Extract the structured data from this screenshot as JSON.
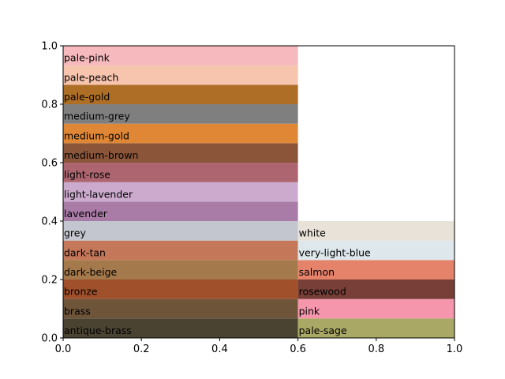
{
  "chart_data": {
    "type": "bar",
    "title": "",
    "xlabel": "",
    "ylabel": "",
    "xlim": [
      0.0,
      1.0
    ],
    "ylim": [
      0.0,
      1.0
    ],
    "xticks": [
      "0.0",
      "0.2",
      "0.4",
      "0.6",
      "0.8",
      "1.0"
    ],
    "yticks": [
      "0.0",
      "0.2",
      "0.4",
      "0.6",
      "0.8",
      "1.0"
    ],
    "grid": false,
    "columns": [
      {
        "x_start": 0.0,
        "x_end": 0.6,
        "bands": [
          {
            "label": "antique-brass",
            "y0": 0.0,
            "y1": 0.0667,
            "color": "#4a4332"
          },
          {
            "label": "brass",
            "y0": 0.0667,
            "y1": 0.1333,
            "color": "#6e553a"
          },
          {
            "label": "bronze",
            "y0": 0.1333,
            "y1": 0.2,
            "color": "#a0502a"
          },
          {
            "label": "dark-beige",
            "y0": 0.2,
            "y1": 0.2667,
            "color": "#a4794b"
          },
          {
            "label": "dark-tan",
            "y0": 0.2667,
            "y1": 0.3333,
            "color": "#c57759"
          },
          {
            "label": "grey",
            "y0": 0.3333,
            "y1": 0.4,
            "color": "#c3c6cf"
          },
          {
            "label": "lavender",
            "y0": 0.4,
            "y1": 0.4667,
            "color": "#a97ba7"
          },
          {
            "label": "light-lavender",
            "y0": 0.4667,
            "y1": 0.5333,
            "color": "#ccaacd"
          },
          {
            "label": "light-rose",
            "y0": 0.5333,
            "y1": 0.6,
            "color": "#ad656f"
          },
          {
            "label": "medium-brown",
            "y0": 0.6,
            "y1": 0.6667,
            "color": "#8a5539"
          },
          {
            "label": "medium-gold",
            "y0": 0.6667,
            "y1": 0.7333,
            "color": "#df8735"
          },
          {
            "label": "medium-grey",
            "y0": 0.7333,
            "y1": 0.8,
            "color": "#7f7f7f"
          },
          {
            "label": "pale-gold",
            "y0": 0.8,
            "y1": 0.8667,
            "color": "#ae6e25"
          },
          {
            "label": "pale-peach",
            "y0": 0.8667,
            "y1": 0.9333,
            "color": "#f7c4ae"
          },
          {
            "label": "pale-pink",
            "y0": 0.9333,
            "y1": 1.0,
            "color": "#f6b9bd"
          }
        ]
      },
      {
        "x_start": 0.6,
        "x_end": 1.0,
        "bands": [
          {
            "label": "pale-sage",
            "y0": 0.0,
            "y1": 0.0667,
            "color": "#a9a865"
          },
          {
            "label": "pink",
            "y0": 0.0667,
            "y1": 0.1333,
            "color": "#f596ad"
          },
          {
            "label": "rosewood",
            "y0": 0.1333,
            "y1": 0.2,
            "color": "#773f37"
          },
          {
            "label": "salmon",
            "y0": 0.2,
            "y1": 0.2667,
            "color": "#e5826a"
          },
          {
            "label": "very-light-blue",
            "y0": 0.2667,
            "y1": 0.3333,
            "color": "#dee8ec"
          },
          {
            "label": "white",
            "y0": 0.3333,
            "y1": 0.4,
            "color": "#e8e2d9"
          }
        ]
      }
    ]
  }
}
